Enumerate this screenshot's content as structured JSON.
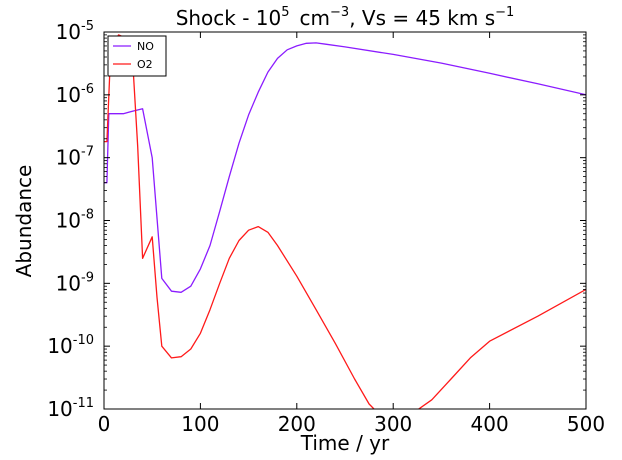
{
  "chart_data": {
    "type": "line",
    "title": {
      "prefix": "Shock - 10",
      "exp1": "5",
      "unit": "cm",
      "exp2": "−3",
      "middle": ", Vs = 45 km s",
      "exp3": "−1"
    },
    "xlabel": "Time / yr",
    "ylabel": "Abundance",
    "xlim": [
      0,
      500
    ],
    "ylim": [
      1e-11,
      1e-05
    ],
    "yscale": "log",
    "xticks": [
      0,
      100,
      200,
      300,
      400,
      500
    ],
    "yticks": [
      {
        "value": 1e-11,
        "base": "10",
        "exp": "-11"
      },
      {
        "value": 1e-10,
        "base": "10",
        "exp": "-10"
      },
      {
        "value": 1e-09,
        "base": "10",
        "exp": "-9"
      },
      {
        "value": 1e-08,
        "base": "10",
        "exp": "-8"
      },
      {
        "value": 1e-07,
        "base": "10",
        "exp": "-7"
      },
      {
        "value": 1e-06,
        "base": "10",
        "exp": "-6"
      },
      {
        "value": 1e-05,
        "base": "10",
        "exp": "-5"
      }
    ],
    "legend_position": "top-left",
    "series": [
      {
        "name": "NO",
        "color": "#8b1cff",
        "points": [
          [
            0,
            4e-08
          ],
          [
            3,
            4e-08
          ],
          [
            5,
            5e-07
          ],
          [
            20,
            5e-07
          ],
          [
            30,
            5.5e-07
          ],
          [
            40,
            6e-07
          ],
          [
            50,
            1e-07
          ],
          [
            60,
            1.2e-09
          ],
          [
            70,
            7.5e-10
          ],
          [
            80,
            7.2e-10
          ],
          [
            90,
            9e-10
          ],
          [
            100,
            1.7e-09
          ],
          [
            110,
            4e-09
          ],
          [
            120,
            1.4e-08
          ],
          [
            130,
            5e-08
          ],
          [
            140,
            1.7e-07
          ],
          [
            150,
            4.8e-07
          ],
          [
            160,
            1.1e-06
          ],
          [
            170,
            2.3e-06
          ],
          [
            180,
            3.8e-06
          ],
          [
            190,
            5.2e-06
          ],
          [
            200,
            6e-06
          ],
          [
            210,
            6.6e-06
          ],
          [
            220,
            6.7e-06
          ],
          [
            230,
            6.4e-06
          ],
          [
            250,
            5.8e-06
          ],
          [
            300,
            4.4e-06
          ],
          [
            350,
            3.2e-06
          ],
          [
            400,
            2.2e-06
          ],
          [
            450,
            1.5e-06
          ],
          [
            500,
            1e-06
          ]
        ]
      },
      {
        "name": "O2",
        "color": "#ff1a1a",
        "points": [
          [
            0,
            1.8e-07
          ],
          [
            3,
            1.8e-07
          ],
          [
            7,
            5e-06
          ],
          [
            15,
            9e-06
          ],
          [
            23,
            8e-06
          ],
          [
            30,
            3e-06
          ],
          [
            35,
            1.5e-07
          ],
          [
            40,
            2.5e-09
          ],
          [
            50,
            5.5e-09
          ],
          [
            55,
            6e-10
          ],
          [
            60,
            1e-10
          ],
          [
            70,
            6.5e-11
          ],
          [
            80,
            6.8e-11
          ],
          [
            90,
            9e-11
          ],
          [
            100,
            1.6e-10
          ],
          [
            110,
            3.8e-10
          ],
          [
            120,
            1e-09
          ],
          [
            130,
            2.5e-09
          ],
          [
            140,
            4.8e-09
          ],
          [
            150,
            7e-09
          ],
          [
            160,
            8e-09
          ],
          [
            170,
            6.5e-09
          ],
          [
            180,
            4e-09
          ],
          [
            200,
            1.3e-09
          ],
          [
            220,
            3.8e-10
          ],
          [
            240,
            1.1e-10
          ],
          [
            260,
            3e-11
          ],
          [
            275,
            1.2e-11
          ],
          [
            290,
            7e-12
          ],
          [
            305,
            6e-12
          ],
          [
            320,
            8.5e-12
          ],
          [
            340,
            1.4e-11
          ],
          [
            360,
            3e-11
          ],
          [
            380,
            6.5e-11
          ],
          [
            400,
            1.2e-10
          ],
          [
            450,
            3e-10
          ],
          [
            500,
            8e-10
          ]
        ]
      }
    ]
  }
}
